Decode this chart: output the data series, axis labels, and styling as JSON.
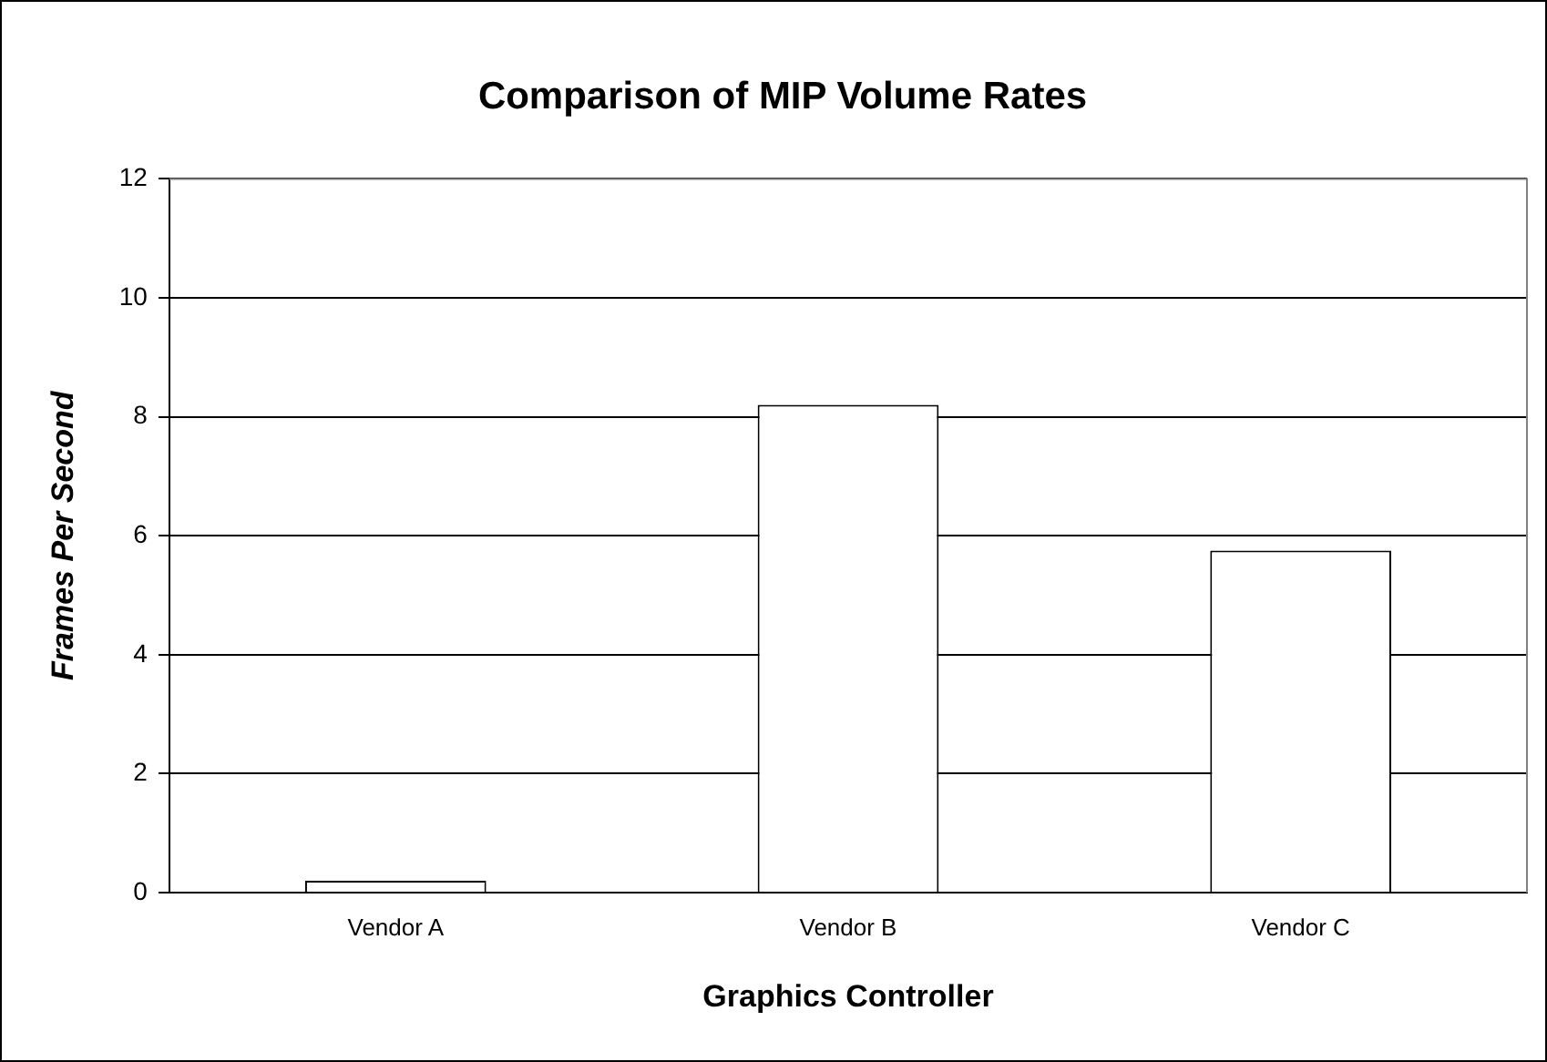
{
  "chart_data": {
    "type": "bar",
    "title": "Comparison of MIP Volume Rates",
    "xlabel": "Graphics Controller",
    "ylabel": "Frames Per Second",
    "categories": [
      "Vendor A",
      "Vendor B",
      "Vendor C"
    ],
    "values": [
      0.2,
      8.2,
      5.75
    ],
    "color": "#ffffff",
    "ylim": [
      0,
      12
    ],
    "yticks": [
      0,
      2,
      4,
      6,
      8,
      10,
      12
    ],
    "grid": "y",
    "legend": false
  }
}
